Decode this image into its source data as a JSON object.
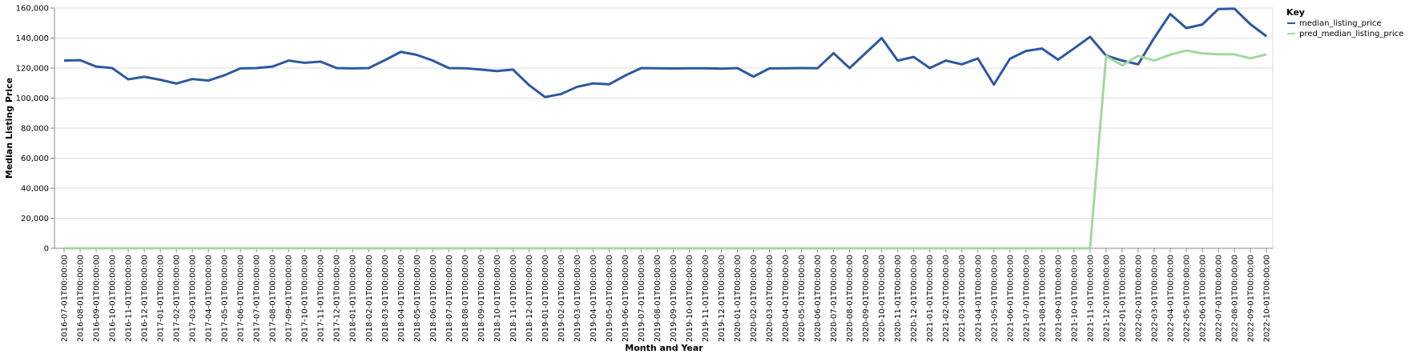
{
  "chart_data": {
    "type": "line",
    "xlabel": "Month and Year",
    "ylabel": "Median Listing Price",
    "ylim": [
      0,
      160000
    ],
    "yticks": [
      "0",
      "20,000",
      "40,000",
      "60,000",
      "80,000",
      "100,000",
      "120,000",
      "140,000",
      "160,000"
    ],
    "grid": true,
    "legend_position": "top-right",
    "legend_title": "Key",
    "x": [
      "2016-07-01T00:00:00",
      "2016-08-01T00:00:00",
      "2016-09-01T00:00:00",
      "2016-10-01T00:00:00",
      "2016-11-01T00:00:00",
      "2016-12-01T00:00:00",
      "2017-01-01T00:00:00",
      "2017-02-01T00:00:00",
      "2017-03-01T00:00:00",
      "2017-04-01T00:00:00",
      "2017-05-01T00:00:00",
      "2017-06-01T00:00:00",
      "2017-07-01T00:00:00",
      "2017-08-01T00:00:00",
      "2017-09-01T00:00:00",
      "2017-10-01T00:00:00",
      "2017-11-01T00:00:00",
      "2017-12-01T00:00:00",
      "2018-01-01T00:00:00",
      "2018-02-01T00:00:00",
      "2018-03-01T00:00:00",
      "2018-04-01T00:00:00",
      "2018-05-01T00:00:00",
      "2018-06-01T00:00:00",
      "2018-07-01T00:00:00",
      "2018-08-01T00:00:00",
      "2018-09-01T00:00:00",
      "2018-10-01T00:00:00",
      "2018-11-01T00:00:00",
      "2018-12-01T00:00:00",
      "2019-01-01T00:00:00",
      "2019-02-01T00:00:00",
      "2019-03-01T00:00:00",
      "2019-04-01T00:00:00",
      "2019-05-01T00:00:00",
      "2019-06-01T00:00:00",
      "2019-07-01T00:00:00",
      "2019-08-01T00:00:00",
      "2019-09-01T00:00:00",
      "2019-10-01T00:00:00",
      "2019-11-01T00:00:00",
      "2019-12-01T00:00:00",
      "2020-01-01T00:00:00",
      "2020-02-01T00:00:00",
      "2020-03-01T00:00:00",
      "2020-04-01T00:00:00",
      "2020-05-01T00:00:00",
      "2020-06-01T00:00:00",
      "2020-07-01T00:00:00",
      "2020-08-01T00:00:00",
      "2020-09-01T00:00:00",
      "2020-10-01T00:00:00",
      "2020-11-01T00:00:00",
      "2020-12-01T00:00:00",
      "2021-01-01T00:00:00",
      "2021-02-01T00:00:00",
      "2021-03-01T00:00:00",
      "2021-04-01T00:00:00",
      "2021-05-01T00:00:00",
      "2021-06-01T00:00:00",
      "2021-07-01T00:00:00",
      "2021-08-01T00:00:00",
      "2021-09-01T00:00:00",
      "2021-10-01T00:00:00",
      "2021-11-01T00:00:00",
      "2021-12-01T00:00:00",
      "2022-01-01T00:00:00",
      "2022-02-01T00:00:00",
      "2022-03-01T00:00:00",
      "2022-04-01T00:00:00",
      "2022-05-01T00:00:00",
      "2022-06-01T00:00:00",
      "2022-07-01T00:00:00",
      "2022-08-01T00:00:00",
      "2022-09-01T00:00:00",
      "2022-10-01T00:00:00"
    ],
    "series": [
      {
        "name": "median_listing_price",
        "color": "#2c58a0",
        "values": [
          125000,
          125250,
          121000,
          120000,
          112500,
          114200,
          112200,
          109700,
          112700,
          111700,
          115200,
          119800,
          120000,
          121000,
          125000,
          123500,
          124300,
          120000,
          119800,
          120000,
          125200,
          130800,
          128800,
          125000,
          120000,
          119900,
          119000,
          118000,
          119000,
          108700,
          100700,
          102700,
          107500,
          109800,
          109200,
          115000,
          120000,
          119900,
          119700,
          119900,
          119900,
          119600,
          120000,
          114300,
          119800,
          119900,
          120000,
          119900,
          129900,
          120000,
          130000,
          140000,
          125000,
          127400,
          120000,
          125000,
          122500,
          126400,
          109000,
          126200,
          131400,
          133000,
          125600,
          133100,
          140800,
          128300,
          125000,
          122500,
          140100,
          156000,
          146600,
          149000,
          159300,
          159600,
          149200,
          141200
        ]
      },
      {
        "name": "pred_median_listing_price",
        "color": "#a1d99b",
        "values": [
          0,
          0,
          0,
          0,
          0,
          0,
          0,
          0,
          0,
          0,
          0,
          0,
          0,
          0,
          0,
          0,
          0,
          0,
          0,
          0,
          0,
          0,
          0,
          0,
          0,
          0,
          0,
          0,
          0,
          0,
          0,
          0,
          0,
          0,
          0,
          0,
          0,
          0,
          0,
          0,
          0,
          0,
          0,
          0,
          0,
          0,
          0,
          0,
          0,
          0,
          0,
          0,
          0,
          0,
          0,
          0,
          0,
          0,
          0,
          0,
          0,
          0,
          0,
          0,
          0,
          128000,
          121800,
          128200,
          125000,
          128900,
          131700,
          129800,
          129200,
          129200,
          126500,
          129100
        ]
      }
    ]
  }
}
